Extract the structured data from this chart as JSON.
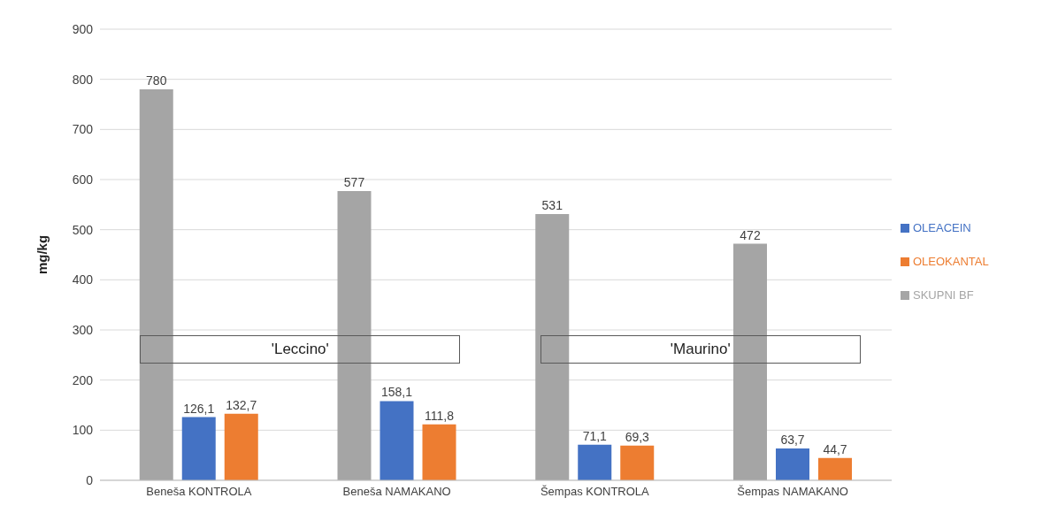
{
  "chart_data": {
    "type": "bar",
    "ylabel": "mg/kg",
    "categories": [
      "Beneša KONTROLA",
      "Beneša NAMAKANO",
      "Šempas KONTROLA",
      "Šempas NAMAKANO"
    ],
    "series": [
      {
        "name": "SKUPNI BF",
        "color": "#a5a5a5",
        "values": [
          780,
          577,
          531,
          472
        ],
        "value_labels": [
          "780",
          "577",
          "531",
          "472"
        ]
      },
      {
        "name": "OLEACEIN",
        "color": "#4472c4",
        "values": [
          126.1,
          158.1,
          71.1,
          63.7
        ],
        "value_labels": [
          "126,1",
          "158,1",
          "71,1",
          "63,7"
        ]
      },
      {
        "name": "OLEOKANTAL",
        "color": "#ed7d31",
        "values": [
          132.7,
          111.8,
          69.3,
          44.7
        ],
        "value_labels": [
          "132,7",
          "111,8",
          "69,3",
          "44,7"
        ]
      }
    ],
    "ylim": [
      0,
      900
    ],
    "yticks": [
      0,
      100,
      200,
      300,
      400,
      500,
      600,
      700,
      800,
      900
    ],
    "grid": "y",
    "legend": "right",
    "annotations": [
      "'Leccino'",
      "'Maurino'"
    ]
  }
}
